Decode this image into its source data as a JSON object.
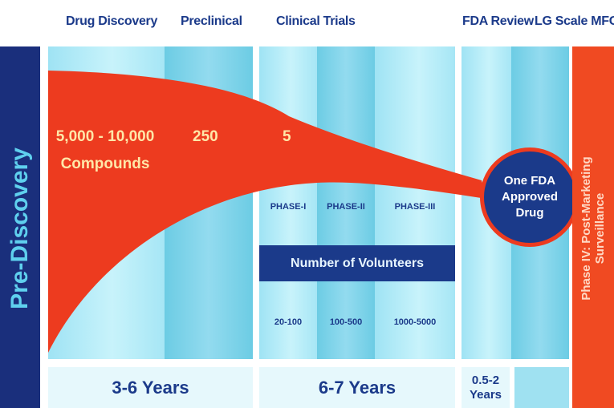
{
  "headers": {
    "drug_discovery": "Drug Discovery",
    "preclinical": "Preclinical",
    "clinical_trials": "Clinical Trials",
    "fda_review": "FDA Review",
    "lg_scale_mfg": "LG Scale MFG"
  },
  "side_labels": {
    "pre_discovery": "Pre-Discovery",
    "post_marketing_line1": "Phase IV: Post-Marketing",
    "post_marketing_line2": "Surveillance"
  },
  "compound_counts": {
    "discovery_line1": "5,000 - 10,000",
    "discovery_line2": "Compounds",
    "preclinical": "250",
    "clinical": "5"
  },
  "phases": [
    "PHASE-I",
    "PHASE-II",
    "PHASE-III"
  ],
  "volunteers": {
    "title": "Number of Volunteers",
    "ranges": [
      "20-100",
      "100-500",
      "1000-5000"
    ]
  },
  "approved_drug": "One FDA Approved Drug",
  "durations": {
    "discovery_preclinical": "3-6 Years",
    "clinical": "6-7 Years",
    "fda_review": "0.5-2 Years"
  },
  "colors": {
    "funnel": "#ed3b1f",
    "navy": "#1b3a8a",
    "stripe_light": "#c8f3fb",
    "stripe_dark": "#6ccce4"
  }
}
